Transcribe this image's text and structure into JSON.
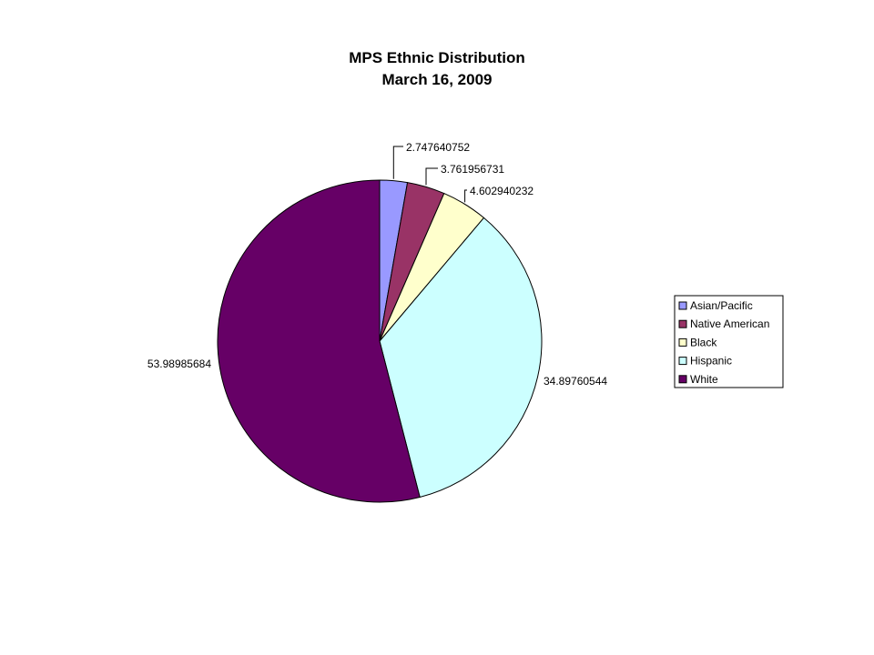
{
  "chart_data": {
    "type": "pie",
    "title": "MPS Ethnic Distribution",
    "subtitle": "March 16, 2009",
    "slices": [
      {
        "label": "Asian/Pacific",
        "value": 2.747640752,
        "display_label": "2.747640752",
        "color": "#9999ff"
      },
      {
        "label": "Native American",
        "value": 3.761956731,
        "display_label": "3.761956731",
        "color": "#993366"
      },
      {
        "label": "Black",
        "value": 4.602940232,
        "display_label": "4.602940232",
        "color": "#ffffcc"
      },
      {
        "label": "Hispanic",
        "value": 34.89760544,
        "display_label": "34.89760544",
        "color": "#ccffff"
      },
      {
        "label": "White",
        "value": 53.98985684,
        "display_label": "53.98985684",
        "color": "#660066"
      }
    ],
    "start_angle": "12 o'clock",
    "direction": "clockwise",
    "legend_position": "right"
  }
}
